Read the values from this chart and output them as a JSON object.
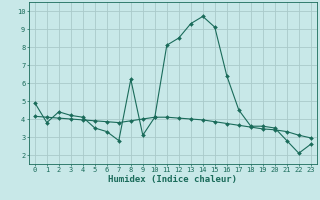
{
  "title": "",
  "xlabel": "Humidex (Indice chaleur)",
  "ylabel": "",
  "xlim": [
    -0.5,
    23.5
  ],
  "ylim": [
    1.5,
    10.5
  ],
  "xticks": [
    0,
    1,
    2,
    3,
    4,
    5,
    6,
    7,
    8,
    9,
    10,
    11,
    12,
    13,
    14,
    15,
    16,
    17,
    18,
    19,
    20,
    21,
    22,
    23
  ],
  "yticks": [
    2,
    3,
    4,
    5,
    6,
    7,
    8,
    9,
    10
  ],
  "bg_color": "#c8e8e8",
  "line_color": "#1a6b5a",
  "grid_color": "#aacaca",
  "curve1_x": [
    0,
    1,
    2,
    3,
    4,
    5,
    6,
    7,
    8,
    9,
    10,
    11,
    12,
    13,
    14,
    15,
    16,
    17,
    18,
    19,
    20,
    21,
    22,
    23
  ],
  "curve1_y": [
    4.9,
    3.8,
    4.4,
    4.2,
    4.1,
    3.5,
    3.3,
    2.8,
    6.2,
    3.1,
    4.1,
    8.1,
    8.5,
    9.3,
    9.7,
    9.1,
    6.4,
    4.5,
    3.6,
    3.6,
    3.5,
    2.8,
    2.1,
    2.6
  ],
  "curve2_x": [
    0,
    1,
    2,
    3,
    4,
    5,
    6,
    7,
    8,
    9,
    10,
    11,
    12,
    13,
    14,
    15,
    16,
    17,
    18,
    19,
    20,
    21,
    22,
    23
  ],
  "curve2_y": [
    4.15,
    4.1,
    4.05,
    4.0,
    3.95,
    3.9,
    3.85,
    3.8,
    3.9,
    4.0,
    4.1,
    4.1,
    4.05,
    4.0,
    3.95,
    3.85,
    3.75,
    3.65,
    3.55,
    3.45,
    3.4,
    3.3,
    3.1,
    2.95
  ],
  "marker_size": 2.0,
  "font_size_ticks": 5.0,
  "font_size_xlabel": 6.5,
  "linewidth": 0.8
}
